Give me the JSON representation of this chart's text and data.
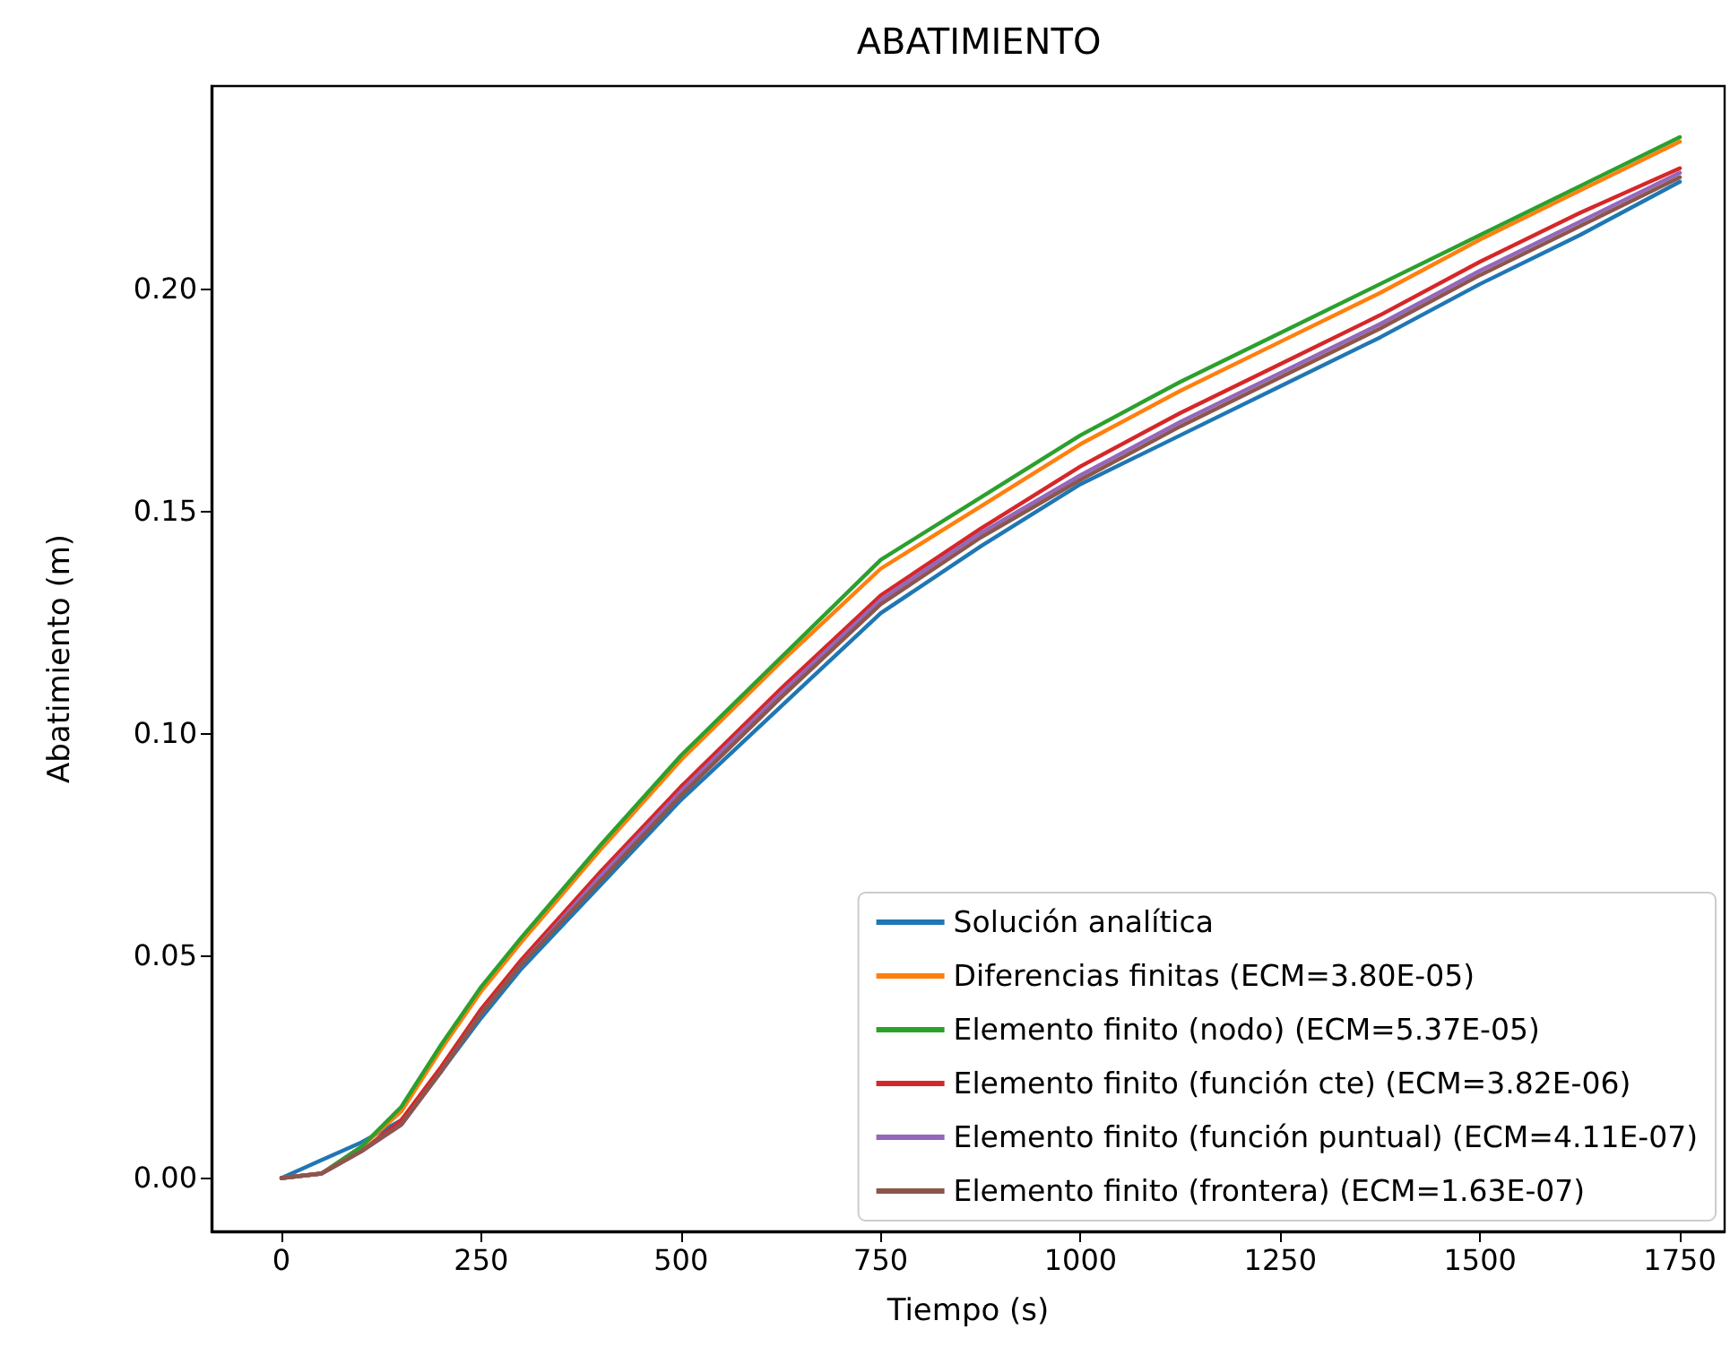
{
  "chart_data": {
    "type": "line",
    "title": "ABATIMIENTO",
    "xlabel": "Tiempo (s)",
    "ylabel": "Abatimiento (m)",
    "x": [
      0,
      50,
      100,
      150,
      200,
      250,
      300,
      400,
      500,
      625,
      750,
      875,
      1000,
      1125,
      1250,
      1375,
      1500,
      1625,
      1750
    ],
    "series": [
      {
        "name": "Solución analítica",
        "color": "#1f77b4",
        "values": [
          0,
          0.004,
          0.008,
          0.013,
          0.024,
          0.036,
          0.047,
          0.066,
          0.085,
          0.106,
          0.127,
          0.142,
          0.156,
          0.167,
          0.178,
          0.189,
          0.201,
          0.212,
          0.224
        ]
      },
      {
        "name": "Diferencias finitas (ECM=3.80E-05)",
        "color": "#ff7f0e",
        "values": [
          0,
          0.001,
          0.007,
          0.015,
          0.029,
          0.042,
          0.053,
          0.074,
          0.094,
          0.116,
          0.137,
          0.151,
          0.165,
          0.177,
          0.188,
          0.199,
          0.211,
          0.222,
          0.233
        ]
      },
      {
        "name": "Elemento finito (nodo) (ECM=5.37E-05)",
        "color": "#2ca02c",
        "values": [
          0,
          0.001,
          0.007,
          0.016,
          0.03,
          0.043,
          0.054,
          0.075,
          0.095,
          0.117,
          0.139,
          0.153,
          0.167,
          0.179,
          0.19,
          0.201,
          0.212,
          0.223,
          0.234
        ]
      },
      {
        "name": "Elemento finito (función cte) (ECM=3.82E-06)",
        "color": "#d62728",
        "values": [
          0,
          0.001,
          0.006,
          0.013,
          0.025,
          0.038,
          0.049,
          0.069,
          0.088,
          0.11,
          0.131,
          0.146,
          0.16,
          0.172,
          0.183,
          0.194,
          0.206,
          0.217,
          0.227
        ]
      },
      {
        "name": "Elemento finito (función puntual) (ECM=4.11E-07)",
        "color": "#9467bd",
        "values": [
          0,
          0.001,
          0.006,
          0.012,
          0.024,
          0.037,
          0.048,
          0.068,
          0.087,
          0.109,
          0.13,
          0.145,
          0.158,
          0.17,
          0.181,
          0.192,
          0.204,
          0.215,
          0.226
        ]
      },
      {
        "name": "Elemento finito (frontera) (ECM=1.63E-07)",
        "color": "#8c564b",
        "values": [
          0,
          0.001,
          0.006,
          0.012,
          0.024,
          0.037,
          0.048,
          0.067,
          0.086,
          0.108,
          0.129,
          0.144,
          0.157,
          0.169,
          0.18,
          0.191,
          0.203,
          0.214,
          0.225
        ]
      }
    ],
    "xlim": [
      -87.5,
      1806
    ],
    "ylim": [
      -0.012,
      0.2455
    ],
    "xticks": [
      0,
      250,
      500,
      750,
      1000,
      1250,
      1500,
      1750
    ],
    "yticks": [
      {
        "value": 0,
        "label": "0.00"
      },
      {
        "value": 0.05,
        "label": "0.05"
      },
      {
        "value": 0.1,
        "label": "0.10"
      },
      {
        "value": 0.15,
        "label": "0.15"
      },
      {
        "value": 0.2,
        "label": "0.20"
      }
    ],
    "grid": false,
    "legend": "bottom right",
    "marker": "none",
    "line_style": "solid"
  }
}
